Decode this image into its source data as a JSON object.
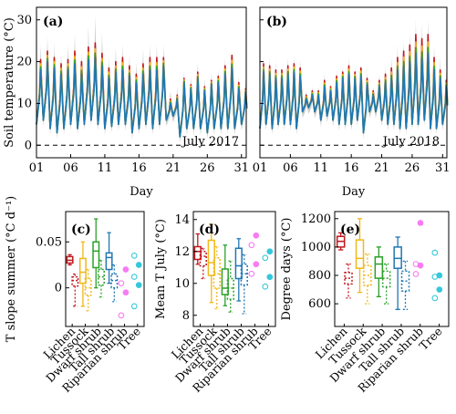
{
  "colors": {
    "Lichen": "#c0171d",
    "Tussock": "#f0b81a",
    "Dwarf shrub": "#2aa12a",
    "Tall shrub": "#1f77b4",
    "Riparian shrub": "#f77cf2",
    "Tree": "#35c8dc",
    "envelope": "#bdbdbd"
  },
  "chart_data": [
    {
      "id": "a",
      "panel_label": "(a)",
      "type": "line",
      "annotation": "July 2017",
      "ylabel": "Soil temperature (°C)",
      "xlabel": "Day",
      "xlim": [
        1,
        31.7
      ],
      "ylim": [
        -3,
        33
      ],
      "xticks": [
        1,
        6,
        11,
        16,
        21,
        26,
        31
      ],
      "xticklabels": [
        "01",
        "06",
        "11",
        "16",
        "21",
        "26",
        "31"
      ],
      "yticks": [
        0,
        10,
        20,
        30
      ],
      "reference_line": 0,
      "daily_max": [
        18,
        20,
        18.5,
        17,
        18,
        19.5,
        17,
        20.5,
        21,
        19,
        16,
        17.5,
        18,
        16.5,
        15,
        17,
        18,
        18,
        19,
        10,
        11,
        15,
        13.5,
        16,
        13,
        14.5,
        15,
        17,
        18.5,
        13.5,
        12.5
      ],
      "daily_min": [
        5,
        6,
        4,
        3,
        4,
        5,
        4,
        5,
        6,
        5,
        4,
        4.5,
        5,
        5,
        3,
        4,
        5,
        4,
        5,
        6,
        7,
        2,
        4,
        4,
        4,
        3,
        4,
        4,
        4,
        4,
        5
      ],
      "lichen_extra": [
        2.5,
        2.5,
        2.5,
        2.5,
        2.5,
        3,
        3,
        3,
        3.5,
        3,
        2.5,
        2.5,
        3,
        2.5,
        2,
        2.5,
        3,
        3,
        2,
        1,
        1,
        1,
        1,
        1.5,
        1,
        1,
        1.5,
        2,
        3,
        1.5,
        1
      ],
      "grey_extra": [
        6,
        6,
        6,
        5,
        6,
        7,
        5,
        8,
        10,
        8,
        5,
        6,
        6,
        5,
        5,
        6,
        6,
        6,
        5,
        3,
        3,
        3,
        3,
        4,
        3,
        3,
        3,
        4,
        4,
        3,
        3
      ]
    },
    {
      "id": "b",
      "panel_label": "(b)",
      "type": "line",
      "annotation": "July 2018",
      "ylabel": "",
      "xlabel": "Day",
      "xlim": [
        1,
        31.7
      ],
      "ylim": [
        -3,
        33
      ],
      "xticks": [
        1,
        6,
        11,
        16,
        21,
        26,
        31
      ],
      "xticklabels": [
        "01",
        "06",
        "11",
        "16",
        "21",
        "26",
        "31"
      ],
      "yticks": [
        0,
        10,
        20,
        30
      ],
      "reference_line": 0,
      "daily_max": [
        17.5,
        17,
        16,
        16,
        17,
        17.5,
        16.5,
        11,
        12,
        12,
        14,
        13,
        15,
        16,
        17,
        16,
        16.5,
        14.5,
        12,
        14,
        15,
        16,
        18,
        19,
        20,
        22,
        21,
        22,
        18,
        16,
        14
      ],
      "daily_min": [
        4,
        5,
        4,
        5,
        5,
        5,
        4,
        8,
        9,
        8,
        6,
        7,
        6,
        5,
        5,
        5,
        6,
        3,
        8,
        8,
        6,
        5,
        5,
        4,
        4,
        5,
        5,
        6,
        4,
        4,
        5
      ],
      "lichen_extra": [
        2,
        2,
        2,
        2,
        2,
        2,
        2,
        1,
        1,
        1,
        1.5,
        1,
        1.5,
        1.5,
        2,
        1.5,
        2,
        1.5,
        1,
        1.5,
        2,
        2.5,
        3,
        3.5,
        4,
        4.5,
        4.5,
        4.5,
        3,
        2,
        1.5
      ],
      "grey_extra": [
        4,
        4,
        4,
        3,
        4,
        4,
        4,
        2,
        2,
        2,
        3,
        2,
        3,
        3,
        4,
        3,
        3,
        3,
        2,
        3,
        4,
        5,
        6,
        6,
        7,
        8,
        8,
        8,
        6,
        5,
        4
      ]
    },
    {
      "id": "c",
      "panel_label": "(c)",
      "type": "box",
      "ylabel": "T slope summer (°C d⁻¹)",
      "categories": [
        "Lichen",
        "Tussock",
        "Dwarf shrub",
        "Tall shrub",
        "Riparian shrub",
        "Tree"
      ],
      "ylim": [
        -0.042,
        0.083
      ],
      "yticks": [
        0,
        0.05
      ],
      "yticklabels": [
        "0",
        "0.05"
      ],
      "series": [
        {
          "name": "Lichen",
          "q1": 0.027,
          "median": 0.03,
          "q3": 0.034,
          "whisker_low": 0.025,
          "whisker_high": 0.036
        },
        {
          "name": "Tussock",
          "q1": 0.005,
          "median": 0.017,
          "q3": 0.032,
          "whisker_low": -0.02,
          "whisker_high": 0.05
        },
        {
          "name": "Dwarf shrub",
          "q1": 0.022,
          "median": 0.04,
          "q3": 0.05,
          "whisker_low": 0,
          "whisker_high": 0.075
        },
        {
          "name": "Tall shrub",
          "q1": 0.02,
          "median": 0.033,
          "q3": 0.038,
          "whisker_low": 0.005,
          "whisker_high": 0.06
        },
        {
          "name": "Riparian shrub",
          "points": [
            -0.03,
            -0.005,
            0.005,
            0.02
          ]
        },
        {
          "name": "Tree",
          "points": [
            -0.02,
            0.003,
            0.012,
            0.025,
            0.035
          ]
        }
      ],
      "secondary": [
        {
          "name": "Lichen",
          "q1": 0.002,
          "median": 0.008,
          "q3": 0.012,
          "whisker_low": -0.02,
          "whisker_high": 0.015
        },
        {
          "name": "Tussock",
          "q1": -0.008,
          "median": 0,
          "q3": 0.01,
          "whisker_low": -0.025,
          "whisker_high": 0.02
        },
        {
          "name": "Dwarf shrub",
          "q1": 0.003,
          "median": 0.012,
          "q3": 0.02,
          "whisker_low": -0.01,
          "whisker_high": 0.03
        },
        {
          "name": "Tall shrub",
          "q1": 0,
          "median": 0.008,
          "q3": 0.015,
          "whisker_low": -0.015,
          "whisker_high": 0.025
        }
      ]
    },
    {
      "id": "d",
      "panel_label": "(d)",
      "type": "box",
      "ylabel": "Mean T July (°C)",
      "categories": [
        "Lichen",
        "Tussock",
        "Dwarf shrub",
        "Tall shrub",
        "Riparian shrub",
        "Tree"
      ],
      "ylim": [
        7.3,
        14.5
      ],
      "yticks": [
        8,
        10,
        12,
        14
      ],
      "yticklabels": [
        "8",
        "10",
        "12",
        "14"
      ],
      "series": [
        {
          "name": "Lichen",
          "q1": 11.5,
          "median": 12,
          "q3": 12.3,
          "whisker_low": 11.2,
          "whisker_high": 13.1
        },
        {
          "name": "Tussock",
          "q1": 10.5,
          "median": 11.3,
          "q3": 12.7,
          "whisker_low": 8.8,
          "whisker_high": 13.7
        },
        {
          "name": "Dwarf shrub",
          "q1": 9.3,
          "median": 9.7,
          "q3": 10.9,
          "whisker_low": 8.6,
          "whisker_high": 12.4
        },
        {
          "name": "Tall shrub",
          "q1": 10.3,
          "median": 11.1,
          "q3": 12.2,
          "whisker_low": 8.9,
          "whisker_high": 12.8
        },
        {
          "name": "Riparian shrub",
          "points": [
            10.6,
            11.2,
            12.4,
            13
          ]
        },
        {
          "name": "Tree",
          "points": [
            9.8,
            10.4,
            11.6,
            12
          ]
        }
      ],
      "secondary": [
        {
          "name": "Lichen",
          "q1": 11.1,
          "median": 11.7,
          "q3": 12,
          "whisker_low": 10.3,
          "whisker_high": 12.2
        },
        {
          "name": "Tussock",
          "q1": 9.7,
          "median": 10.6,
          "q3": 11.6,
          "whisker_low": 8.4,
          "whisker_high": 12.3
        },
        {
          "name": "Dwarf shrub",
          "q1": 9,
          "median": 9.7,
          "q3": 10.3,
          "whisker_low": 8.2,
          "whisker_high": 11.4
        },
        {
          "name": "Tall shrub",
          "q1": 9.9,
          "median": 10.6,
          "q3": 11.2,
          "whisker_low": 8.1,
          "whisker_high": 11.8
        }
      ]
    },
    {
      "id": "e",
      "panel_label": "(e)",
      "type": "box",
      "ylabel": "Degree days (°C)",
      "categories": [
        "Lichen",
        "Tussock",
        "Dwarf shrub",
        "Tall shrub",
        "Riparian shrub",
        "Tree"
      ],
      "ylim": [
        440,
        1250
      ],
      "yticks": [
        600,
        800,
        1000,
        1200
      ],
      "yticklabels": [
        "600",
        "800",
        "1000",
        "1200"
      ],
      "series": [
        {
          "name": "Lichen",
          "q1": 1000,
          "median": 1040,
          "q3": 1075,
          "whisker_low": 980,
          "whisker_high": 1100
        },
        {
          "name": "Tussock",
          "q1": 850,
          "median": 920,
          "q3": 1050,
          "whisker_low": 680,
          "whisker_high": 1200
        },
        {
          "name": "Dwarf shrub",
          "q1": 780,
          "median": 880,
          "q3": 930,
          "whisker_low": 650,
          "whisker_high": 1000
        },
        {
          "name": "Tall shrub",
          "q1": 850,
          "median": 920,
          "q3": 1000,
          "whisker_low": 560,
          "whisker_high": 1070
        },
        {
          "name": "Riparian shrub",
          "points": [
            810,
            870,
            880,
            1170
          ]
        },
        {
          "name": "Tree",
          "points": [
            640,
            700,
            790,
            800,
            960
          ]
        }
      ],
      "secondary": [
        {
          "name": "Lichen",
          "q1": 740,
          "median": 780,
          "q3": 820,
          "whisker_low": 640,
          "whisker_high": 880
        },
        {
          "name": "Tussock",
          "q1": 730,
          "median": 800,
          "q3": 870,
          "whisker_low": 600,
          "whisker_high": 950
        },
        {
          "name": "Dwarf shrub",
          "q1": 720,
          "median": 780,
          "q3": 830,
          "whisker_low": 600,
          "whisker_high": 880
        },
        {
          "name": "Tall shrub",
          "q1": 690,
          "median": 760,
          "q3": 830,
          "whisker_low": 560,
          "whisker_high": 900
        }
      ]
    }
  ]
}
